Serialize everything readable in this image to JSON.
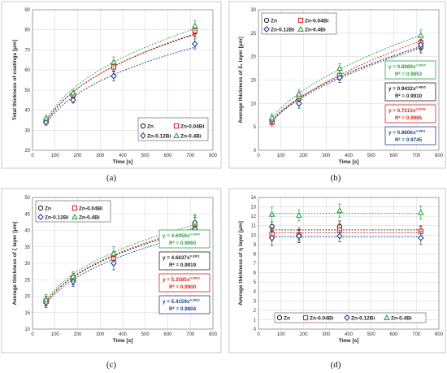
{
  "colors": {
    "Zn": "#222222",
    "Zn-0.04Bi": "#e0211e",
    "Zn-0.12Bi": "#1f3f8c",
    "Zn-0.4Bi": "#2ca24a"
  },
  "chart_data": [
    {
      "type": "scatter",
      "caption": "(a)",
      "title": "",
      "xlabel": "Time [s]",
      "ylabel": "Total thickness of coatings [μm]",
      "xlim": [
        0,
        800
      ],
      "ylim": [
        20,
        90
      ],
      "xticks": [
        0,
        100,
        200,
        300,
        400,
        500,
        600,
        700,
        800
      ],
      "yticks": [
        20,
        30,
        40,
        50,
        60,
        70,
        80,
        90
      ],
      "grid": true,
      "legend": "bottom-right",
      "x": [
        60,
        180,
        360,
        720
      ],
      "series": [
        {
          "name": "Zn",
          "values": [
            35,
            47,
            62,
            79
          ],
          "err": [
            1.5,
            1.5,
            2.5,
            2.5
          ],
          "fit": "power"
        },
        {
          "name": "Zn-0.04Bi",
          "values": [
            34.5,
            47.5,
            61.5,
            79.5
          ],
          "err": [
            1.5,
            1.5,
            2.5,
            2.5
          ],
          "fit": "power"
        },
        {
          "name": "Zn-0.12Bi",
          "values": [
            34,
            45,
            57,
            73
          ],
          "err": [
            1.5,
            1.5,
            2.5,
            2.5
          ],
          "fit": "power"
        },
        {
          "name": "Zn-0.4Bi",
          "values": [
            36,
            48.5,
            64,
            82
          ],
          "err": [
            1.5,
            1.5,
            2.5,
            2.5
          ],
          "fit": "power"
        }
      ]
    },
    {
      "type": "scatter",
      "caption": "(b)",
      "title": "",
      "xlabel": "Time [s]",
      "ylabel": "Average thickness of δ₁ layer [μm]",
      "xlim": [
        0,
        800
      ],
      "ylim": [
        0,
        30
      ],
      "xticks": [
        0,
        100,
        200,
        300,
        400,
        500,
        600,
        700,
        800
      ],
      "yticks": [
        0,
        5,
        10,
        15,
        20,
        25,
        30
      ],
      "grid": true,
      "legend": "top-left",
      "x": [
        60,
        180,
        360,
        720
      ],
      "series": [
        {
          "name": "Zn",
          "values": [
            6.5,
            11,
            16,
            22
          ],
          "err": [
            0.8,
            1,
            1,
            1.2
          ],
          "fit": "power"
        },
        {
          "name": "Zn-0.04Bi",
          "values": [
            6,
            11.5,
            16,
            23
          ],
          "err": [
            0.8,
            1,
            1,
            1.2
          ],
          "fit": "power"
        },
        {
          "name": "Zn-0.12Bi",
          "values": [
            6.5,
            10,
            15.5,
            22.5
          ],
          "err": [
            0.8,
            1,
            1,
            1.2
          ],
          "fit": "power"
        },
        {
          "name": "Zn-0.4Bi",
          "values": [
            7,
            12,
            17.5,
            24.5
          ],
          "err": [
            0.8,
            1,
            1,
            1.2
          ],
          "fit": "power"
        }
      ],
      "equations": [
        {
          "series": "Zn-0.4Bi",
          "eq": "y = 0.8889x",
          "exp": "0.5065",
          "r2": "R² = 0.9853"
        },
        {
          "series": "Zn",
          "eq": "y = 0.9432x",
          "exp": "0.4865",
          "r2": "R² = 0.9910"
        },
        {
          "series": "Zn-0.04Bi",
          "eq": "y = 0.7213x",
          "exp": "0.5246",
          "r2": "R² = 0.9985"
        },
        {
          "series": "Zn-0.12Bi",
          "eq": "y = 0.8606x",
          "exp": "0.4901",
          "r2": "R² = 0.9745"
        }
      ]
    },
    {
      "type": "scatter",
      "caption": "(c)",
      "title": "",
      "xlabel": "Time [s]",
      "ylabel": "Average thickness of ζ layer [μm]",
      "xlim": [
        0,
        800
      ],
      "ylim": [
        10,
        50
      ],
      "xticks": [
        0,
        100,
        200,
        300,
        400,
        500,
        600,
        700,
        800
      ],
      "yticks": [
        10,
        15,
        20,
        25,
        30,
        35,
        40,
        45,
        50
      ],
      "grid": true,
      "legend": "top-left",
      "x": [
        60,
        180,
        360,
        720
      ],
      "series": [
        {
          "name": "Zn",
          "values": [
            18.5,
            25,
            31.5,
            41.5
          ],
          "err": [
            1.5,
            1.5,
            2,
            2.5
          ],
          "fit": "power"
        },
        {
          "name": "Zn-0.04Bi",
          "values": [
            18.5,
            25.5,
            31.5,
            42
          ],
          "err": [
            1.5,
            1.5,
            2,
            2.5
          ],
          "fit": "power"
        },
        {
          "name": "Zn-0.12Bi",
          "values": [
            18,
            24.5,
            30,
            40.5
          ],
          "err": [
            1.5,
            1.5,
            2,
            2.5
          ],
          "fit": "power"
        },
        {
          "name": "Zn-0.4Bi",
          "values": [
            19,
            26,
            33,
            42.5
          ],
          "err": [
            1.5,
            1.5,
            2,
            2.5
          ],
          "fit": "power"
        }
      ],
      "equations": [
        {
          "series": "Zn-0.4Bi",
          "eq": "y = 4.6958x",
          "exp": "0.3338",
          "r2": "R² = 0.9960"
        },
        {
          "series": "Zn",
          "eq": "y = 4.6637x",
          "exp": "0.3301",
          "r2": "R² = 0.9919"
        },
        {
          "series": "Zn-0.04Bi",
          "eq": "y = 5.3585x",
          "exp": "0.3063",
          "r2": "R² = 0.9900"
        },
        {
          "series": "Zn-0.12Bi",
          "eq": "y = 5.4159x",
          "exp": "0.2962",
          "r2": "R² = 0.9804"
        }
      ]
    },
    {
      "type": "scatter",
      "caption": "(d)",
      "title": "",
      "xlabel": "Time [s]",
      "ylabel": "Average thickness of η layer [μm]",
      "xlim": [
        0,
        800
      ],
      "ylim": [
        0,
        14
      ],
      "xticks": [
        0,
        100,
        200,
        300,
        400,
        500,
        600,
        700,
        800
      ],
      "yticks": [
        0,
        1,
        2,
        3,
        4,
        5,
        6,
        7,
        8,
        9,
        10,
        11,
        12,
        13,
        14
      ],
      "grid": true,
      "legend": "bottom",
      "x": [
        60,
        180,
        360,
        720
      ],
      "series": [
        {
          "name": "Zn",
          "values": [
            10.9,
            10,
            10.9,
            10.4
          ],
          "err": [
            0.5,
            0.5,
            0.6,
            0.5
          ],
          "fit": "mean",
          "mean": 10.55
        },
        {
          "name": "Zn-0.04Bi",
          "values": [
            10.1,
            10,
            10.5,
            10.4
          ],
          "err": [
            0.7,
            0.8,
            0.7,
            0.6
          ],
          "fit": "mean",
          "mean": 10.25
        },
        {
          "name": "Zn-0.12Bi",
          "values": [
            9.7,
            9.9,
            9.9,
            9.7
          ],
          "err": [
            0.8,
            0.7,
            0.6,
            0.7
          ],
          "fit": "mean",
          "mean": 9.8
        },
        {
          "name": "Zn-0.4Bi",
          "values": [
            12.2,
            12.1,
            12.6,
            12.4
          ],
          "err": [
            0.8,
            0.6,
            0.7,
            0.7
          ],
          "fit": "mean",
          "mean": 12.3
        }
      ]
    }
  ]
}
